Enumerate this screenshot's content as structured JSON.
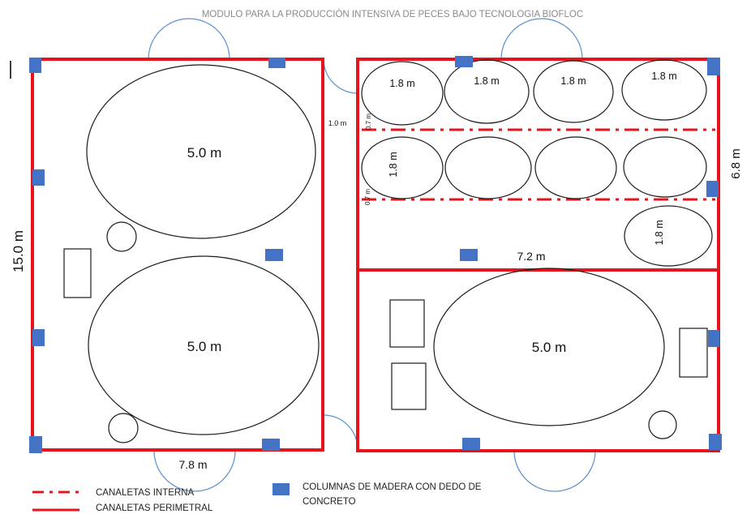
{
  "title": "MODULO PARA LA PRODUCCIÓN INTENSIVA DE PECES BAJO TECNOLOGIA BIOFLOC",
  "colors": {
    "canal": "#e8141c",
    "column": "#4472c4",
    "outline": "#1a1a1a",
    "door": "#5a8fd0"
  },
  "dimensions": {
    "height_left": "15.0 m",
    "width_left": "7.8 m",
    "corridor": "1.0 m",
    "height_right": "6.8 m",
    "width_right": "7.2 m",
    "small_gap_a": "0.7 m",
    "small_gap_b": "0.7 m"
  },
  "tanks": {
    "large_top_left": "5.0 m",
    "large_bottom_left": "5.0 m",
    "large_bottom_right": "5.0 m",
    "small_row1_1": "1.8 m",
    "small_row1_2": "1.8 m",
    "small_row1_3": "1.8 m",
    "small_row1_4": "1.8 m",
    "small_row2_1": "1.8 m",
    "small_isolated": "1.8 m"
  },
  "legend": {
    "internal_canal": "CANALETAS INTERNA",
    "perimeter_canal": "CANALETAS PERIMETRAL",
    "columns_line1": "COLUMNAS DE MADERA CON DEDO DE",
    "columns_line2": "CONCRETO"
  }
}
